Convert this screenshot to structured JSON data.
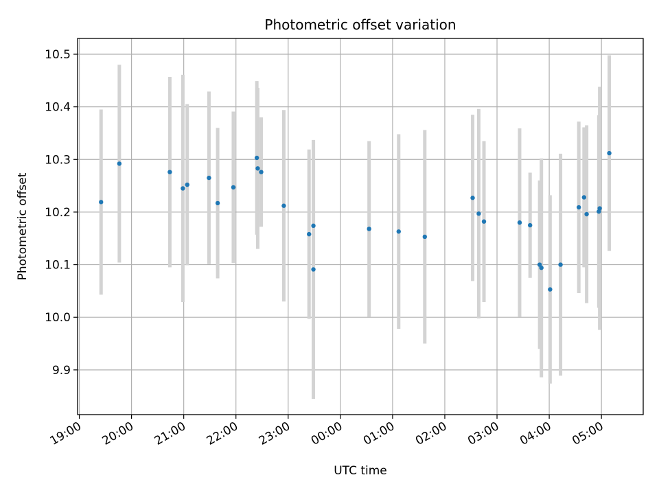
{
  "chart_data": {
    "type": "scatter",
    "title": "Photometric offset variation",
    "xlabel": "UTC time",
    "ylabel": "Photometric offset",
    "grid": true,
    "x_axis_type": "time",
    "x_ticks": [
      "19:00",
      "20:00",
      "21:00",
      "22:00",
      "23:00",
      "00:00",
      "01:00",
      "02:00",
      "03:00",
      "04:00",
      "05:00"
    ],
    "y_ticks": [
      "9.9",
      "10.0",
      "10.1",
      "10.2",
      "10.3",
      "10.4",
      "10.5"
    ],
    "xlim": [
      "18:58",
      "05:48"
    ],
    "ylim": [
      9.815,
      10.53
    ],
    "colors": {
      "points": "#1f77b4",
      "errorbars": "#d3d3d3"
    },
    "points": [
      {
        "x": "19:25",
        "y": 10.219,
        "err": 0.176
      },
      {
        "x": "19:46",
        "y": 10.292,
        "err": 0.188
      },
      {
        "x": "20:44",
        "y": 10.276,
        "err": 0.181
      },
      {
        "x": "20:59",
        "y": 10.245,
        "err": 0.216
      },
      {
        "x": "21:04",
        "y": 10.252,
        "err": 0.153
      },
      {
        "x": "21:29",
        "y": 10.265,
        "err": 0.164
      },
      {
        "x": "21:39",
        "y": 10.217,
        "err": 0.143
      },
      {
        "x": "21:57",
        "y": 10.247,
        "err": 0.144
      },
      {
        "x": "22:24",
        "y": 10.303,
        "err": 0.146
      },
      {
        "x": "22:25",
        "y": 10.283,
        "err": 0.153
      },
      {
        "x": "22:29",
        "y": 10.276,
        "err": 0.104
      },
      {
        "x": "22:55",
        "y": 10.212,
        "err": 0.182
      },
      {
        "x": "23:24",
        "y": 10.158,
        "err": 0.161
      },
      {
        "x": "23:29",
        "y": 10.174,
        "err": 0.162
      },
      {
        "x": "23:29",
        "y": 10.091,
        "err": 0.246
      },
      {
        "x": "00:33",
        "y": 10.168,
        "err": 0.167
      },
      {
        "x": "01:07",
        "y": 10.163,
        "err": 0.185
      },
      {
        "x": "01:37",
        "y": 10.153,
        "err": 0.203
      },
      {
        "x": "02:32",
        "y": 10.227,
        "err": 0.158
      },
      {
        "x": "02:39",
        "y": 10.197,
        "err": 0.199
      },
      {
        "x": "02:45",
        "y": 10.182,
        "err": 0.153
      },
      {
        "x": "03:26",
        "y": 10.18,
        "err": 0.179
      },
      {
        "x": "03:38",
        "y": 10.175,
        "err": 0.1
      },
      {
        "x": "03:49",
        "y": 10.1,
        "err": 0.16
      },
      {
        "x": "03:51",
        "y": 10.094,
        "err": 0.208
      },
      {
        "x": "04:01",
        "y": 10.053,
        "err": 0.179
      },
      {
        "x": "04:13",
        "y": 10.1,
        "err": 0.211
      },
      {
        "x": "04:34",
        "y": 10.209,
        "err": 0.163
      },
      {
        "x": "04:40",
        "y": 10.228,
        "err": 0.133
      },
      {
        "x": "04:43",
        "y": 10.196,
        "err": 0.169
      },
      {
        "x": "04:57",
        "y": 10.201,
        "err": 0.183
      },
      {
        "x": "04:58",
        "y": 10.207,
        "err": 0.231
      },
      {
        "x": "05:09",
        "y": 10.312,
        "err": 0.186
      }
    ]
  }
}
